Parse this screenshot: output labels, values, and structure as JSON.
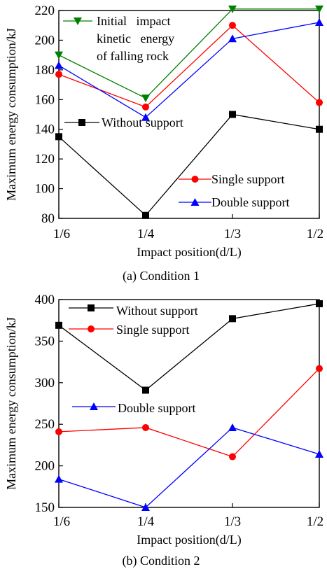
{
  "chart_data": [
    {
      "type": "line",
      "caption": "(a) Condition 1",
      "xlabel": "Impact position(d/L)",
      "ylabel": "Maximum energy consumption/kJ",
      "categories": [
        "1/6",
        "1/4",
        "1/3",
        "1/2"
      ],
      "ylim": [
        80,
        220
      ],
      "yticks": [
        80,
        100,
        120,
        140,
        160,
        180,
        200,
        220
      ],
      "grid": false,
      "series": [
        {
          "name": "Initial   impact kinetic   energy of falling rock",
          "legend_lines": [
            "Initial   impact",
            "kinetic   energy",
            "of falling rock"
          ],
          "color": "#008000",
          "marker": "triangle-down",
          "values": [
            190,
            161,
            221,
            221
          ]
        },
        {
          "name": "Single support",
          "legend_lines": [
            "Single support"
          ],
          "color": "#ff0000",
          "marker": "circle",
          "values": [
            177,
            155,
            210,
            158
          ]
        },
        {
          "name": "Double support",
          "legend_lines": [
            "Double support"
          ],
          "color": "#0000ff",
          "marker": "triangle-up",
          "values": [
            183,
            148,
            201,
            212
          ]
        },
        {
          "name": "Without support",
          "legend_lines": [
            "Without support"
          ],
          "color": "#000000",
          "marker": "square",
          "values": [
            135,
            82,
            150,
            140
          ]
        }
      ]
    },
    {
      "type": "line",
      "caption": "(b) Condition 2",
      "xlabel": "Impact position(d/L)",
      "ylabel": "Maximum energy consumption/kJ",
      "categories": [
        "1/6",
        "1/4",
        "1/3",
        "1/2"
      ],
      "ylim": [
        150,
        400
      ],
      "yticks": [
        150,
        200,
        250,
        300,
        350,
        400
      ],
      "grid": false,
      "series": [
        {
          "name": "Without support",
          "legend_lines": [
            "Without support"
          ],
          "color": "#000000",
          "marker": "square",
          "values": [
            369,
            291,
            377,
            395
          ]
        },
        {
          "name": "Single support",
          "legend_lines": [
            "Single support"
          ],
          "color": "#ff0000",
          "marker": "circle",
          "values": [
            241,
            246,
            211,
            317
          ]
        },
        {
          "name": "Double support",
          "legend_lines": [
            "Double support"
          ],
          "color": "#0000ff",
          "marker": "triangle-up",
          "values": [
            184,
            150,
            246,
            214
          ]
        }
      ]
    }
  ]
}
